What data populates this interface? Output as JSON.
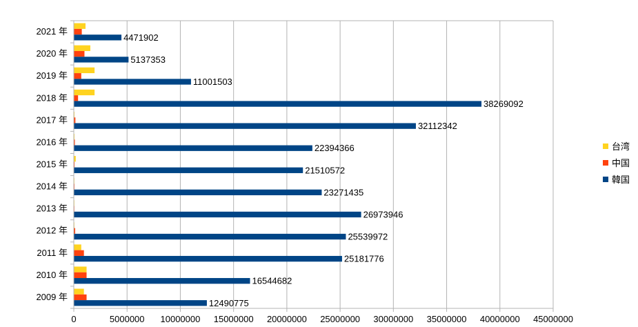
{
  "chart_data": {
    "type": "bar",
    "orientation": "horizontal",
    "categories": [
      "2021 年",
      "2020 年",
      "2019 年",
      "2018 年",
      "2017 年",
      "2016 年",
      "2015 年",
      "2014 年",
      "2013 年",
      "2012 年",
      "2011 年",
      "2010 年",
      "2009 年"
    ],
    "series": [
      {
        "name": "台湾",
        "color": "#ffd320",
        "values": [
          1100000,
          1550000,
          1950000,
          1950000,
          60000,
          60000,
          180000,
          30000,
          20000,
          40000,
          700000,
          1200000,
          950000
        ]
      },
      {
        "name": "中国",
        "color": "#ff420e",
        "values": [
          750000,
          1000000,
          700000,
          400000,
          150000,
          100000,
          70000,
          60000,
          50000,
          130000,
          950000,
          1200000,
          1200000
        ]
      },
      {
        "name": "韓国",
        "color": "#004586",
        "values": [
          4471902,
          5137353,
          11001503,
          38269092,
          32112342,
          22394366,
          21510572,
          23271435,
          26973946,
          25539972,
          25181776,
          16544682,
          12490775
        ]
      }
    ],
    "data_labels_series": "韓国",
    "xlim": [
      0,
      45000000
    ],
    "x_ticks": [
      0,
      5000000,
      10000000,
      15000000,
      20000000,
      25000000,
      30000000,
      35000000,
      40000000,
      45000000
    ],
    "title": "",
    "xlabel": "",
    "ylabel": "",
    "grid": "vertical",
    "legend": "right"
  }
}
